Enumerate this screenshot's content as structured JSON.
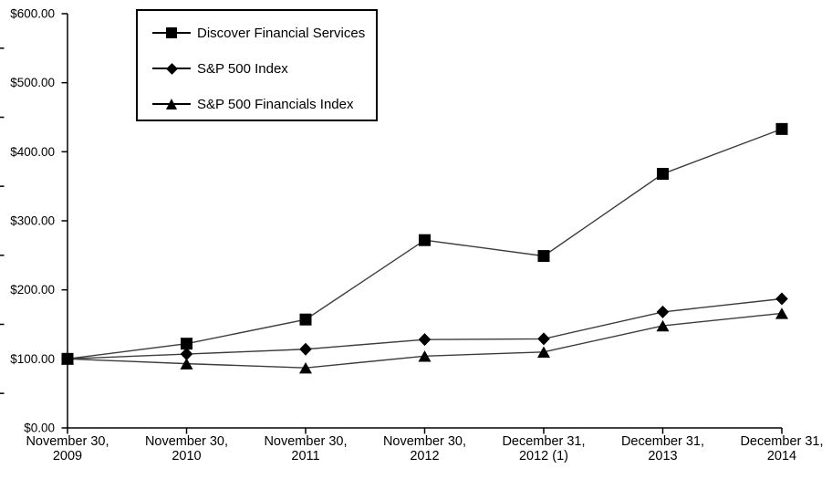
{
  "chart_data": {
    "type": "line",
    "title": "",
    "xlabel": "",
    "ylabel": "",
    "categories": [
      "November 30, 2009",
      "November 30, 2010",
      "November 30, 2011",
      "November 30, 2012",
      "December 31, 2012 (1)",
      "December 31, 2013",
      "December 31, 2014"
    ],
    "x_tick_lines": [
      [
        "November 30,",
        "2009"
      ],
      [
        "November 30,",
        "2010"
      ],
      [
        "November 30,",
        "2011"
      ],
      [
        "November 30,",
        "2012"
      ],
      [
        "December 31,",
        "2012 (1)"
      ],
      [
        "December 31,",
        "2013"
      ],
      [
        "December 31,",
        "2014"
      ]
    ],
    "series": [
      {
        "name": "Discover Financial Services",
        "marker": "square",
        "values": [
          100,
          122,
          157,
          272,
          249,
          368,
          433
        ]
      },
      {
        "name": "S&P 500 Index",
        "marker": "diamond",
        "values": [
          100,
          107,
          114,
          128,
          129,
          168,
          187
        ]
      },
      {
        "name": "S&P 500 Financials Index",
        "marker": "triangle",
        "values": [
          100,
          93,
          87,
          104,
          110,
          148,
          166
        ]
      }
    ],
    "ylim": [
      0,
      600
    ],
    "ytick_step": 100,
    "ytick_labels": [
      "$0.00",
      "$100.00",
      "$200.00",
      "$300.00",
      "$400.00",
      "$500.00",
      "$600.00"
    ],
    "minor_tick_step": 50,
    "grid": false,
    "legend_position": "top-left-inside",
    "colors": {
      "line": "#3c3c3c",
      "marker": "#000000",
      "axis": "#000000",
      "text": "#000000",
      "background": "#ffffff"
    }
  }
}
